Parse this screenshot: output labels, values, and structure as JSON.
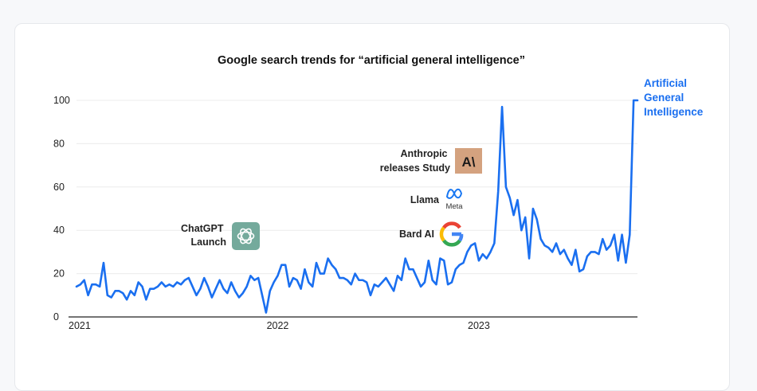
{
  "chart_data": {
    "type": "line",
    "title": "Google search trends for “artificial general intelligence”",
    "xlabel": "",
    "ylabel": "",
    "ylim": [
      0,
      100
    ],
    "yticks": [
      0,
      20,
      40,
      60,
      80,
      100
    ],
    "x_tick_labels": [
      "2021",
      "2022",
      "2023"
    ],
    "x_tick_weeks": [
      0,
      52,
      104
    ],
    "x_start": "2021-01",
    "grid": "horizontal",
    "line_color": "#1a6ff0",
    "series": [
      {
        "name": "Artificial General Intelligence",
        "values": [
          14,
          15,
          17,
          10,
          15,
          15,
          14,
          25,
          10,
          9,
          12,
          12,
          11,
          8,
          12,
          10,
          16,
          14,
          8,
          13,
          13,
          14,
          16,
          14,
          15,
          14,
          16,
          15,
          17,
          18,
          14,
          10,
          13,
          18,
          14,
          9,
          13,
          17,
          13,
          11,
          16,
          12,
          9,
          11,
          14,
          19,
          17,
          18,
          10,
          2,
          12,
          16,
          19,
          24,
          24,
          14,
          18,
          17,
          13,
          22,
          16,
          14,
          25,
          20,
          20,
          27,
          24,
          22,
          18,
          18,
          17,
          15,
          20,
          17,
          17,
          16,
          10,
          15,
          14,
          16,
          18,
          15,
          12,
          19,
          17,
          27,
          22,
          22,
          18,
          14,
          16,
          26,
          17,
          15,
          27,
          26,
          15,
          16,
          22,
          24,
          25,
          30,
          33,
          34,
          26,
          29,
          27,
          30,
          34,
          58,
          97,
          60,
          55,
          47,
          54,
          40,
          46,
          27,
          50,
          45,
          36,
          33,
          32,
          30,
          34,
          29,
          31,
          27,
          24,
          31,
          21,
          22,
          28,
          30,
          30,
          29,
          36,
          31,
          33,
          38,
          26,
          38,
          25,
          38,
          100,
          100
        ]
      }
    ],
    "end_label_lines": [
      "Artificial",
      "General",
      "Intelligence"
    ],
    "annotations": [
      {
        "lines": [
          "ChatGPT",
          "Launch"
        ],
        "logo": "openai-logo",
        "week": 48
      },
      {
        "lines": [
          "Anthropic",
          "releases Study"
        ],
        "logo": "anthropic-logo",
        "logo_text": "A\\",
        "week": 101
      },
      {
        "lines": [
          "Llama"
        ],
        "logo": "meta-logo",
        "logo_text": "Meta",
        "week": 101
      },
      {
        "lines": [
          "Bard AI"
        ],
        "logo": "google-logo",
        "logo_text": "G",
        "week": 101
      }
    ]
  }
}
